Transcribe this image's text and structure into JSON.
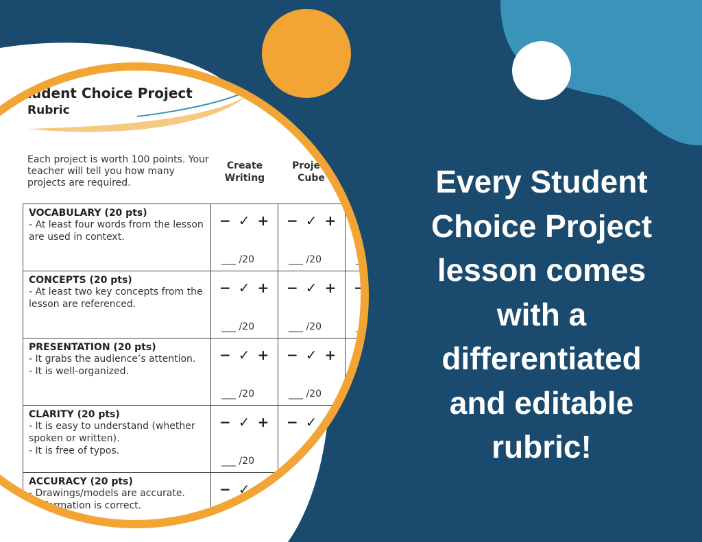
{
  "headline": [
    "Every Student",
    "Choice Project",
    "lesson comes",
    "with a",
    "differentiated",
    "and editable",
    "rubric!"
  ],
  "rubric": {
    "title": "Student Choice Project",
    "subtitle": "Rubric",
    "intro": "Each project is worth 100 points. Your teacher will tell you how many projects are required.",
    "columns": [
      "Create Writing",
      "Project Cube"
    ],
    "rating_marks": "− ✓ +",
    "score_blank": "___ /20",
    "rows": [
      {
        "criterion": "VOCABULARY (20 pts)",
        "items": [
          "- At least four words from the lesson are used in context."
        ]
      },
      {
        "criterion": "CONCEPTS (20 pts)",
        "items": [
          "- At least two key concepts from the lesson are referenced."
        ]
      },
      {
        "criterion": "PRESENTATION (20 pts)",
        "items": [
          "-  It grabs the audience’s attention.",
          "-  It is well-organized."
        ]
      },
      {
        "criterion": "CLARITY (20 pts)",
        "items": [
          "- It is easy to understand (whether spoken or written).",
          "- It is free of typos."
        ]
      },
      {
        "criterion": "ACCURACY (20 pts)",
        "items": [
          "- Drawings/models are accurate.",
          "- Information is correct."
        ]
      }
    ]
  }
}
